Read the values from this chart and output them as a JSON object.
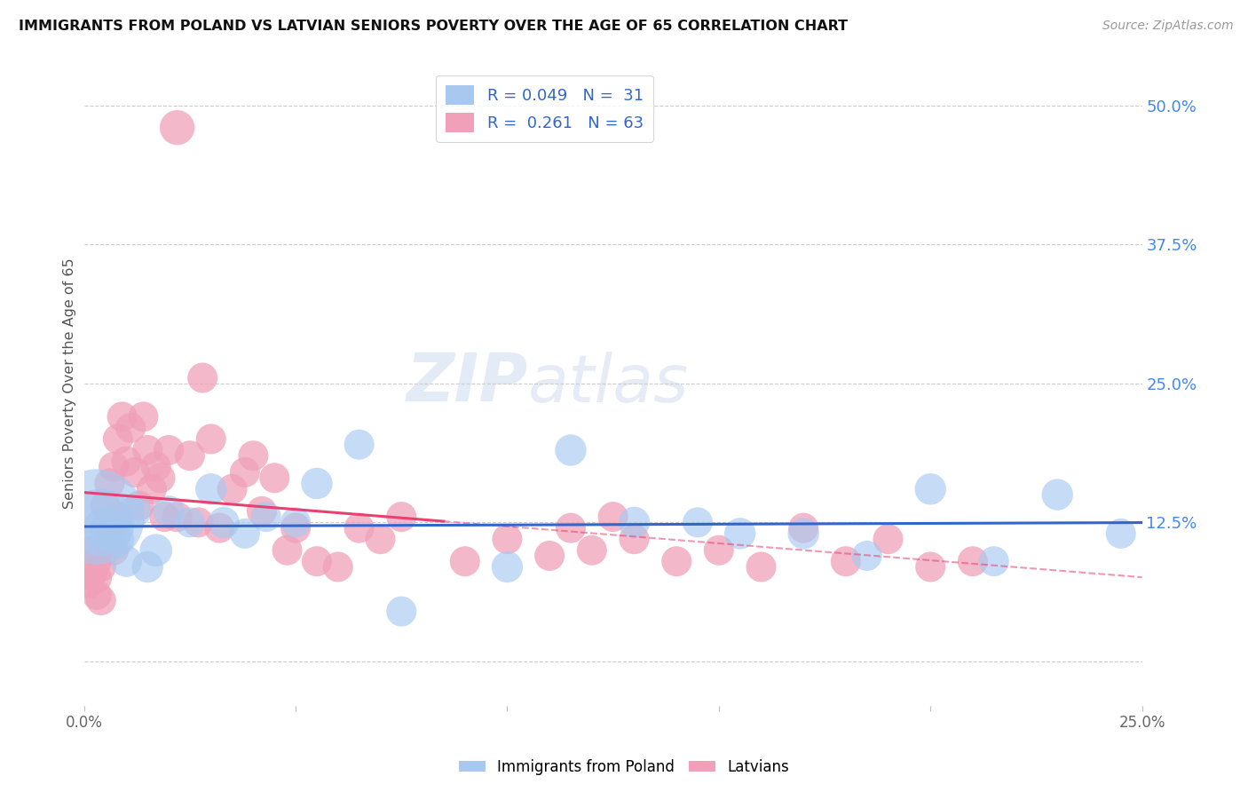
{
  "title": "IMMIGRANTS FROM POLAND VS LATVIAN SENIORS POVERTY OVER THE AGE OF 65 CORRELATION CHART",
  "source": "Source: ZipAtlas.com",
  "ylabel": "Seniors Poverty Over the Age of 65",
  "legend_label1": "Immigrants from Poland",
  "legend_label2": "Latvians",
  "r1": "0.049",
  "n1": "31",
  "r2": "0.261",
  "n2": "63",
  "xlim": [
    0.0,
    0.25
  ],
  "ylim": [
    -0.04,
    0.54
  ],
  "color_blue": "#a8c8f0",
  "color_pink": "#f0a0b8",
  "line_blue": "#3366CC",
  "line_pink": "#E84070",
  "watermark_zip": "ZIP",
  "watermark_atlas": "atlas",
  "blue_x": [
    0.003,
    0.004,
    0.005,
    0.006,
    0.007,
    0.008,
    0.01,
    0.012,
    0.015,
    0.017,
    0.02,
    0.025,
    0.03,
    0.033,
    0.038,
    0.043,
    0.05,
    0.055,
    0.065,
    0.075,
    0.1,
    0.115,
    0.13,
    0.145,
    0.155,
    0.17,
    0.185,
    0.2,
    0.215,
    0.23,
    0.245
  ],
  "blue_y": [
    0.13,
    0.125,
    0.12,
    0.115,
    0.115,
    0.11,
    0.09,
    0.135,
    0.085,
    0.1,
    0.135,
    0.125,
    0.155,
    0.125,
    0.115,
    0.13,
    0.125,
    0.16,
    0.195,
    0.045,
    0.085,
    0.19,
    0.125,
    0.125,
    0.115,
    0.115,
    0.095,
    0.155,
    0.09,
    0.15,
    0.115
  ],
  "blue_size": [
    600,
    300,
    120,
    90,
    80,
    70,
    65,
    70,
    65,
    70,
    65,
    60,
    65,
    65,
    60,
    60,
    60,
    65,
    60,
    60,
    65,
    65,
    65,
    60,
    65,
    65,
    60,
    65,
    60,
    65,
    60
  ],
  "pink_x": [
    0.001,
    0.002,
    0.002,
    0.003,
    0.003,
    0.003,
    0.004,
    0.004,
    0.005,
    0.005,
    0.005,
    0.006,
    0.006,
    0.007,
    0.007,
    0.008,
    0.008,
    0.009,
    0.01,
    0.011,
    0.012,
    0.013,
    0.014,
    0.015,
    0.016,
    0.017,
    0.018,
    0.019,
    0.02,
    0.022,
    0.025,
    0.027,
    0.028,
    0.03,
    0.032,
    0.035,
    0.038,
    0.04,
    0.042,
    0.045,
    0.048,
    0.05,
    0.055,
    0.06,
    0.065,
    0.07,
    0.075,
    0.09,
    0.1,
    0.11,
    0.115,
    0.12,
    0.125,
    0.13,
    0.14,
    0.15,
    0.16,
    0.17,
    0.18,
    0.19,
    0.2,
    0.21,
    0.022
  ],
  "pink_y": [
    0.07,
    0.08,
    0.1,
    0.06,
    0.075,
    0.09,
    0.055,
    0.085,
    0.1,
    0.12,
    0.14,
    0.11,
    0.16,
    0.1,
    0.175,
    0.13,
    0.2,
    0.22,
    0.18,
    0.21,
    0.17,
    0.14,
    0.22,
    0.19,
    0.155,
    0.175,
    0.165,
    0.13,
    0.19,
    0.13,
    0.185,
    0.125,
    0.255,
    0.2,
    0.12,
    0.155,
    0.17,
    0.185,
    0.135,
    0.165,
    0.1,
    0.12,
    0.09,
    0.085,
    0.12,
    0.11,
    0.13,
    0.09,
    0.11,
    0.095,
    0.12,
    0.1,
    0.13,
    0.11,
    0.09,
    0.1,
    0.085,
    0.12,
    0.09,
    0.11,
    0.085,
    0.09,
    0.48
  ],
  "pink_size": [
    60,
    60,
    60,
    60,
    60,
    60,
    60,
    60,
    60,
    60,
    60,
    60,
    60,
    60,
    60,
    60,
    60,
    60,
    60,
    60,
    60,
    60,
    60,
    60,
    60,
    60,
    60,
    60,
    60,
    60,
    60,
    60,
    60,
    60,
    60,
    60,
    60,
    60,
    60,
    60,
    60,
    60,
    60,
    60,
    60,
    60,
    60,
    60,
    60,
    60,
    60,
    60,
    60,
    60,
    60,
    60,
    60,
    60,
    60,
    60,
    60,
    60,
    80
  ],
  "background_color": "#ffffff"
}
